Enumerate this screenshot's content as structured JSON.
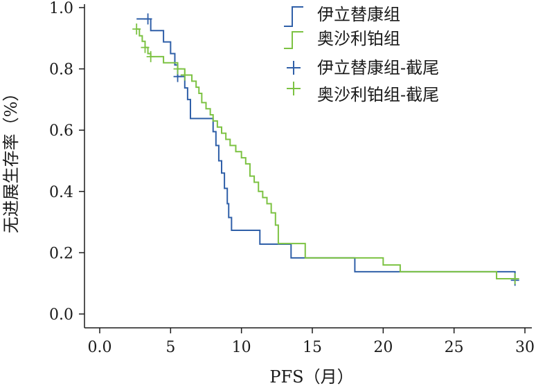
{
  "chart_data": {
    "type": "line",
    "subtype": "kaplan-meier",
    "xlabel": "PFS（月）",
    "ylabel": "无进展生存率（%）",
    "xlim": [
      0,
      30
    ],
    "ylim": [
      0,
      1.0
    ],
    "x_ticks": [
      "0.0",
      "5",
      "10",
      "15",
      "20",
      "25",
      "30"
    ],
    "y_ticks": [
      "0.0",
      "0.2",
      "0.4",
      "0.6",
      "0.8",
      "1.0"
    ],
    "grid": false,
    "legend_position": "top-right",
    "series": [
      {
        "name": "伊立替康组",
        "censor_label": "伊立替康组-截尾",
        "color": "#2f5fa8",
        "steps": [
          [
            2.6,
            0.963
          ],
          [
            3.6,
            0.925
          ],
          [
            4.5,
            0.888
          ],
          [
            5.0,
            0.85
          ],
          [
            5.3,
            0.813
          ],
          [
            5.5,
            0.775
          ],
          [
            6.0,
            0.738
          ],
          [
            6.2,
            0.7
          ],
          [
            6.4,
            0.638
          ],
          [
            7.5,
            0.638
          ],
          [
            8.0,
            0.595
          ],
          [
            8.2,
            0.55
          ],
          [
            8.4,
            0.5
          ],
          [
            8.6,
            0.46
          ],
          [
            8.8,
            0.41
          ],
          [
            9.0,
            0.36
          ],
          [
            9.1,
            0.315
          ],
          [
            9.3,
            0.273
          ],
          [
            11.3,
            0.228
          ],
          [
            13.5,
            0.183
          ],
          [
            18.0,
            0.138
          ],
          [
            29.3,
            0.11
          ]
        ],
        "end_x": 29.3,
        "censored": [
          [
            3.4,
            0.963
          ],
          [
            5.5,
            0.775
          ],
          [
            29.3,
            0.11
          ]
        ]
      },
      {
        "name": "奥沙利铂组",
        "censor_label": "奥沙利铂组-截尾",
        "color": "#7cc242",
        "steps": [
          [
            2.6,
            0.93
          ],
          [
            2.8,
            0.908
          ],
          [
            3.0,
            0.89
          ],
          [
            3.2,
            0.87
          ],
          [
            3.4,
            0.85
          ],
          [
            3.6,
            0.84
          ],
          [
            4.5,
            0.82
          ],
          [
            5.5,
            0.8
          ],
          [
            6.0,
            0.78
          ],
          [
            6.5,
            0.76
          ],
          [
            6.8,
            0.74
          ],
          [
            7.0,
            0.72
          ],
          [
            7.2,
            0.69
          ],
          [
            7.5,
            0.67
          ],
          [
            7.8,
            0.65
          ],
          [
            8.0,
            0.63
          ],
          [
            8.3,
            0.61
          ],
          [
            8.6,
            0.59
          ],
          [
            8.9,
            0.57
          ],
          [
            9.2,
            0.55
          ],
          [
            9.6,
            0.53
          ],
          [
            10.0,
            0.51
          ],
          [
            10.3,
            0.49
          ],
          [
            10.6,
            0.45
          ],
          [
            10.9,
            0.43
          ],
          [
            11.2,
            0.4
          ],
          [
            11.5,
            0.38
          ],
          [
            11.8,
            0.36
          ],
          [
            12.1,
            0.33
          ],
          [
            12.4,
            0.29
          ],
          [
            12.6,
            0.23
          ],
          [
            14.5,
            0.183
          ],
          [
            20.0,
            0.16
          ],
          [
            21.2,
            0.138
          ],
          [
            28.0,
            0.115
          ]
        ],
        "end_x": 29.3,
        "censored": [
          [
            2.6,
            0.93
          ],
          [
            3.2,
            0.87
          ],
          [
            3.6,
            0.84
          ],
          [
            5.5,
            0.8
          ],
          [
            6.0,
            0.78
          ],
          [
            29.3,
            0.115
          ]
        ]
      }
    ]
  }
}
